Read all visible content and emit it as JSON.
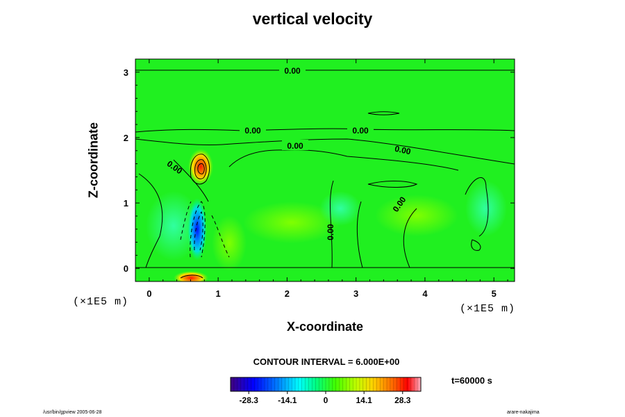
{
  "chart_data": {
    "type": "heatmap",
    "title": "vertical velocity",
    "xlabel": "X-coordinate",
    "ylabel": "Z-coordinate",
    "x_unit": "(×1E5 m)",
    "xlim": [
      -0.2,
      5.3
    ],
    "ylim": [
      -0.2,
      3.2
    ],
    "x_ticks": [
      "0",
      "1",
      "2",
      "3",
      "4",
      "5"
    ],
    "y_ticks": [
      "0",
      "1",
      "2",
      "3"
    ],
    "contour_labels": [
      "0.00",
      "0.00",
      "0.00",
      "0.00",
      "0.00",
      "0.00",
      "0.00",
      "0.00"
    ],
    "contour_interval": "CONTOUR INTERVAL = 6.000E+00",
    "colorbar_ticks": [
      "-28.3",
      "-14.1",
      "0",
      "14.1",
      "28.3"
    ],
    "colorbar_range": [
      -35,
      35
    ],
    "features": [
      {
        "x": 0.72,
        "z": 1.5,
        "value": 30
      },
      {
        "x": 0.68,
        "z": 0.45,
        "value": -28
      },
      {
        "x": 0.62,
        "z": 0.85,
        "value": -16
      }
    ],
    "time_label": "t=60000 s"
  },
  "footer": {
    "left": "/usr/bin/gpview 2005-06-28",
    "right": "arare-nakajima"
  },
  "colors": {
    "background": "#00ff00",
    "positive_max": "#ff0000",
    "negative_max": "#0000ff"
  }
}
